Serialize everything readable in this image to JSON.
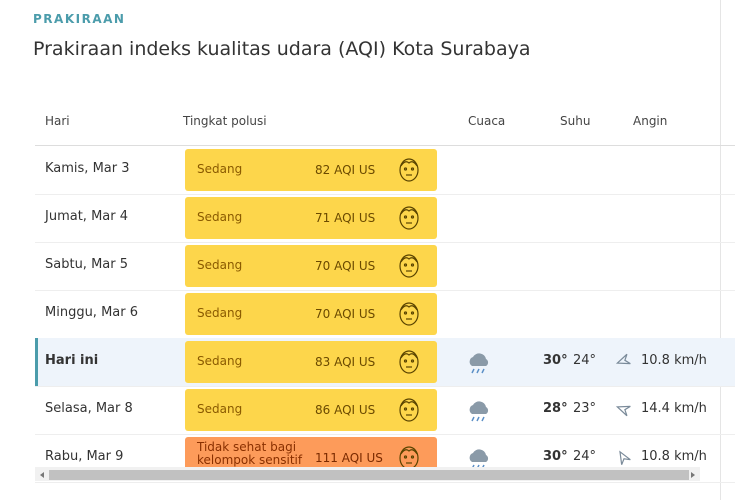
{
  "header": {
    "label": "PRAKIRAAN",
    "title": "Prakiraan indeks kualitas udara (AQI) Kota Surabaya"
  },
  "table": {
    "columns": [
      "Hari",
      "Tingkat polusi",
      "Cuaca",
      "Suhu",
      "Angin"
    ],
    "rows": [
      {
        "day": "Kamis, Mar 3",
        "level": "Sedang",
        "aqi": "82 AQI US"
      },
      {
        "day": "Jumat, Mar 4",
        "level": "Sedang",
        "aqi": "71 AQI US"
      },
      {
        "day": "Sabtu, Mar 5",
        "level": "Sedang",
        "aqi": "70 AQI US"
      },
      {
        "day": "Minggu, Mar 6",
        "level": "Sedang",
        "aqi": "70 AQI US"
      },
      {
        "day": "Hari ini",
        "level": "Sedang",
        "aqi": "83 AQI US",
        "temp_high": "30°",
        "temp_low": "24°",
        "wind": "10.8 km/h",
        "current": true
      },
      {
        "day": "Selasa, Mar 8",
        "level": "Sedang",
        "aqi": "86 AQI US",
        "temp_high": "28°",
        "temp_low": "23°",
        "wind": "14.4 km/h"
      },
      {
        "day": "Rabu, Mar 9",
        "level": "Tidak sehat bagi kelompok sensitif",
        "aqi": "111 AQI US",
        "temp_high": "30°",
        "temp_low": "24°",
        "wind": "10.8 km/h",
        "sensitive": true
      }
    ]
  }
}
